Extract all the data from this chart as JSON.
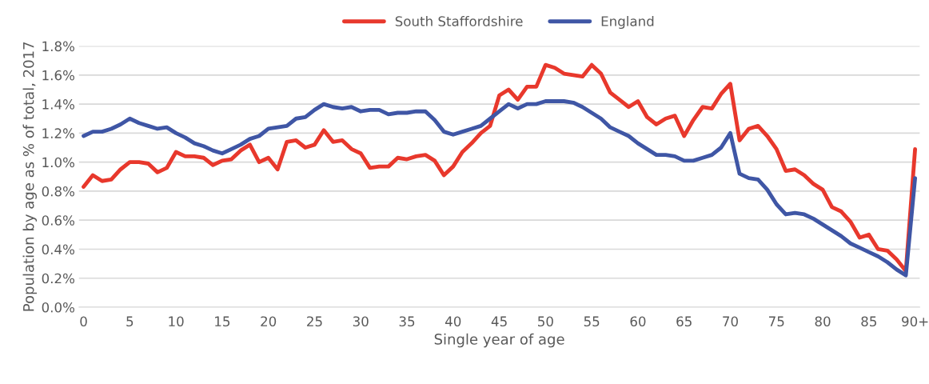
{
  "chart_data": {
    "type": "line",
    "xlabel": "Single year of age",
    "ylabel": "Population by age as % of total, 2017",
    "categories": [
      "0",
      null,
      null,
      null,
      null,
      "5",
      null,
      null,
      null,
      null,
      "10",
      null,
      null,
      null,
      null,
      "15",
      null,
      null,
      null,
      null,
      "20",
      null,
      null,
      null,
      null,
      "25",
      null,
      null,
      null,
      null,
      "30",
      null,
      null,
      null,
      null,
      "35",
      null,
      null,
      null,
      null,
      "40",
      null,
      null,
      null,
      null,
      "45",
      null,
      null,
      null,
      null,
      "50",
      null,
      null,
      null,
      null,
      "55",
      null,
      null,
      null,
      null,
      "60",
      null,
      null,
      null,
      null,
      "65",
      null,
      null,
      null,
      null,
      "70",
      null,
      null,
      null,
      null,
      "75",
      null,
      null,
      null,
      null,
      "80",
      null,
      null,
      null,
      null,
      "85",
      null,
      null,
      null,
      null,
      "90+"
    ],
    "series": [
      {
        "name": "South Staffordshire",
        "color": "#e8382c",
        "values": [
          0.83,
          0.91,
          0.87,
          0.88,
          0.95,
          1.0,
          1.0,
          0.99,
          0.93,
          0.96,
          1.07,
          1.04,
          1.04,
          1.03,
          0.98,
          1.01,
          1.02,
          1.08,
          1.12,
          1.0,
          1.03,
          0.95,
          1.14,
          1.15,
          1.1,
          1.12,
          1.22,
          1.14,
          1.15,
          1.09,
          1.06,
          0.96,
          0.97,
          0.97,
          1.03,
          1.02,
          1.04,
          1.05,
          1.01,
          0.91,
          0.97,
          1.07,
          1.13,
          1.2,
          1.25,
          1.46,
          1.5,
          1.43,
          1.52,
          1.52,
          1.67,
          1.65,
          1.61,
          1.6,
          1.59,
          1.67,
          1.61,
          1.48,
          1.43,
          1.38,
          1.42,
          1.31,
          1.26,
          1.3,
          1.32,
          1.18,
          1.29,
          1.38,
          1.37,
          1.47,
          1.54,
          1.15,
          1.23,
          1.25,
          1.18,
          1.09,
          0.94,
          0.95,
          0.91,
          0.85,
          0.81,
          0.69,
          0.66,
          0.59,
          0.48,
          0.5,
          0.4,
          0.39,
          0.33,
          0.25,
          1.09
        ]
      },
      {
        "name": "England",
        "color": "#3f56a5",
        "values": [
          1.18,
          1.21,
          1.21,
          1.23,
          1.26,
          1.3,
          1.27,
          1.25,
          1.23,
          1.24,
          1.2,
          1.17,
          1.13,
          1.11,
          1.08,
          1.06,
          1.09,
          1.12,
          1.16,
          1.18,
          1.23,
          1.24,
          1.25,
          1.3,
          1.31,
          1.36,
          1.4,
          1.38,
          1.37,
          1.38,
          1.35,
          1.36,
          1.36,
          1.33,
          1.34,
          1.34,
          1.35,
          1.35,
          1.29,
          1.21,
          1.19,
          1.21,
          1.23,
          1.25,
          1.3,
          1.35,
          1.4,
          1.37,
          1.4,
          1.4,
          1.42,
          1.42,
          1.42,
          1.41,
          1.38,
          1.34,
          1.3,
          1.24,
          1.21,
          1.18,
          1.13,
          1.09,
          1.05,
          1.05,
          1.04,
          1.01,
          1.01,
          1.03,
          1.05,
          1.1,
          1.2,
          0.92,
          0.89,
          0.88,
          0.81,
          0.71,
          0.64,
          0.65,
          0.64,
          0.61,
          0.57,
          0.53,
          0.49,
          0.44,
          0.41,
          0.38,
          0.35,
          0.31,
          0.26,
          0.22,
          0.89
        ]
      }
    ],
    "ylim": [
      0,
      1.8
    ],
    "yticks": [
      {
        "value": 0,
        "label": "0.0%"
      },
      {
        "value": 0.2,
        "label": "0.2%"
      },
      {
        "value": 0.4,
        "label": "0.4%"
      },
      {
        "value": 0.6,
        "label": "0.6%"
      },
      {
        "value": 0.8,
        "label": "0.8%"
      },
      {
        "value": 1.0,
        "label": "1.0%"
      },
      {
        "value": 1.2,
        "label": "1.2%"
      },
      {
        "value": 1.4,
        "label": "1.4%"
      },
      {
        "value": 1.6,
        "label": "1.6%"
      },
      {
        "value": 1.8,
        "label": "1.8%"
      }
    ],
    "grid": "y",
    "legend": "top",
    "marker": "none",
    "line_style": "solid"
  }
}
